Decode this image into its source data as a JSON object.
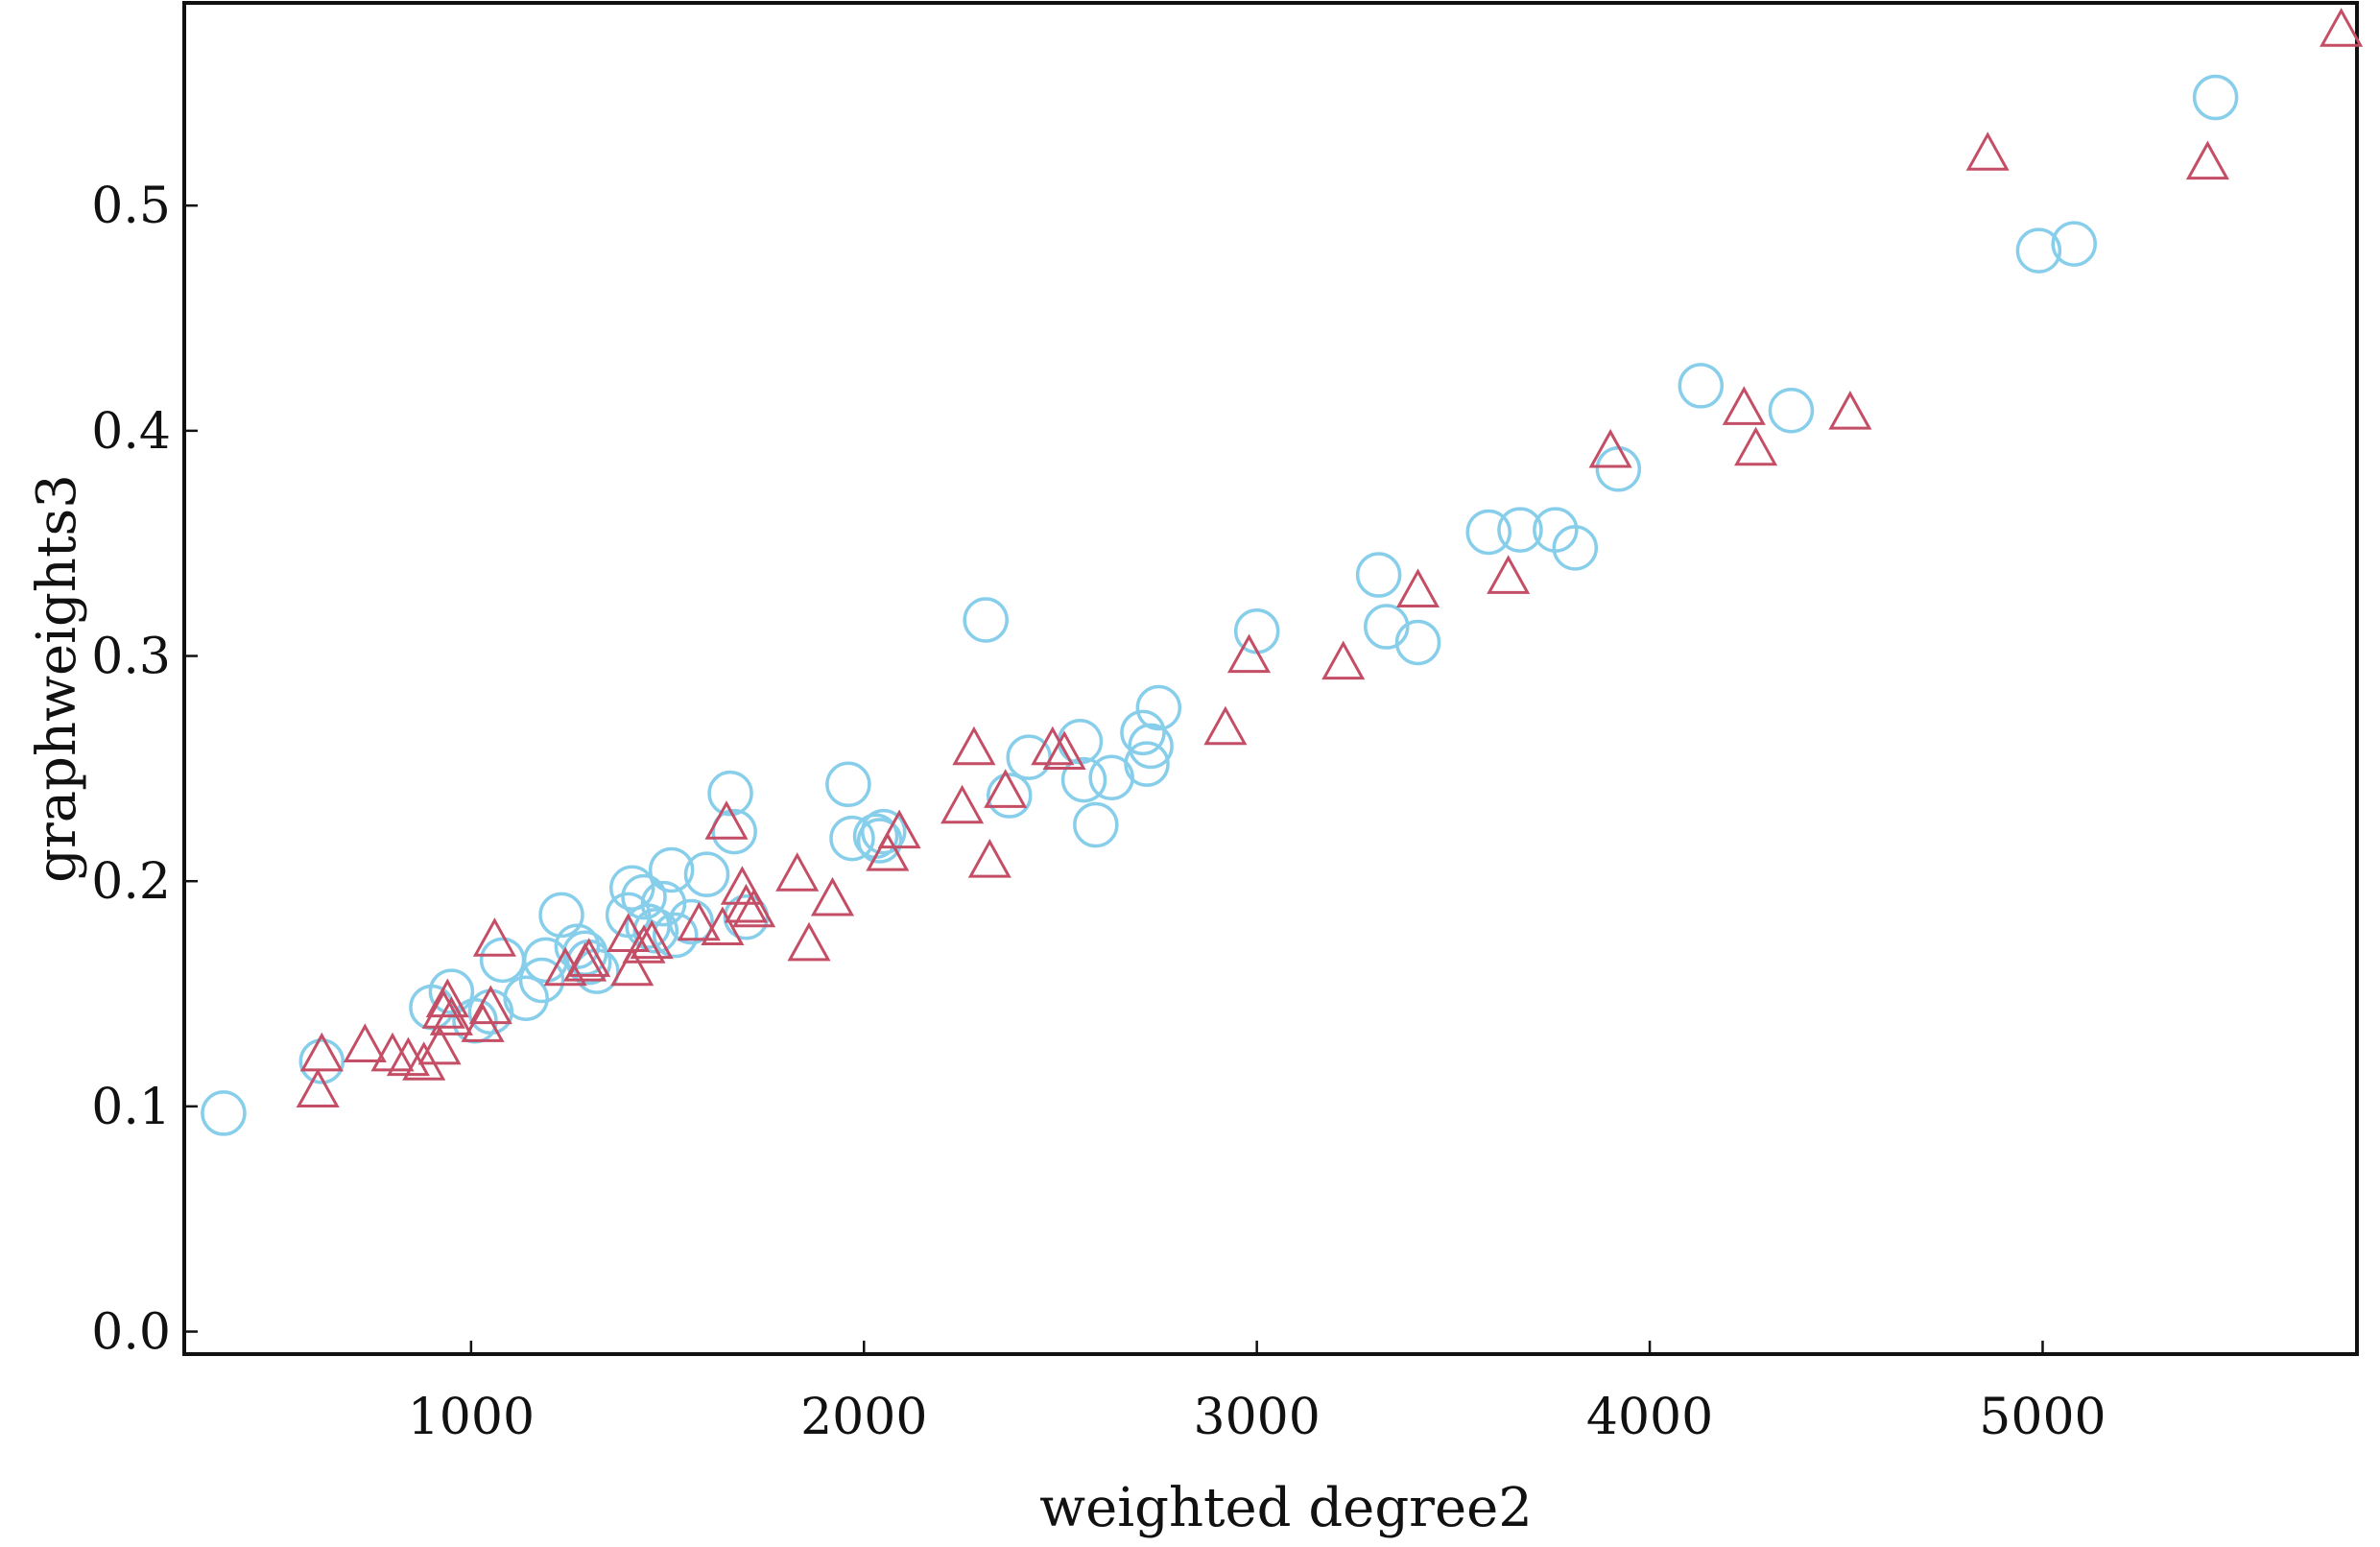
{
  "chart_data": {
    "type": "scatter",
    "title": "",
    "xlabel": "weighted degree2",
    "ylabel": "graphweights3",
    "xlim": [
      270,
      5800
    ],
    "ylim": [
      -0.01,
      0.59
    ],
    "x_ticks": [
      1000,
      2000,
      3000,
      4000,
      5000
    ],
    "x_tick_labels": [
      "1000",
      "2000",
      "3000",
      "4000",
      "5000"
    ],
    "y_ticks": [
      0.0,
      0.1,
      0.2,
      0.3,
      0.4,
      0.5
    ],
    "y_tick_labels": [
      "0.0",
      "0.1",
      "0.2",
      "0.3",
      "0.4",
      "0.5"
    ],
    "grid": false,
    "legend": "none",
    "series": [
      {
        "marker": "circle",
        "color": "#87CEEB",
        "points": [
          [
            370,
            0.097
          ],
          [
            620,
            0.12
          ],
          [
            900,
            0.144
          ],
          [
            950,
            0.151
          ],
          [
            1010,
            0.138
          ],
          [
            1050,
            0.142
          ],
          [
            1080,
            0.165
          ],
          [
            1140,
            0.148
          ],
          [
            1180,
            0.156
          ],
          [
            1190,
            0.165
          ],
          [
            1230,
            0.185
          ],
          [
            1270,
            0.171
          ],
          [
            1290,
            0.168
          ],
          [
            1300,
            0.164
          ],
          [
            1320,
            0.16
          ],
          [
            1400,
            0.185
          ],
          [
            1410,
            0.197
          ],
          [
            1440,
            0.193
          ],
          [
            1450,
            0.18
          ],
          [
            1470,
            0.178
          ],
          [
            1490,
            0.19
          ],
          [
            1510,
            0.205
          ],
          [
            1520,
            0.176
          ],
          [
            1560,
            0.182
          ],
          [
            1600,
            0.203
          ],
          [
            1660,
            0.239
          ],
          [
            1670,
            0.222
          ],
          [
            1700,
            0.184
          ],
          [
            1960,
            0.243
          ],
          [
            1970,
            0.219
          ],
          [
            2030,
            0.22
          ],
          [
            2040,
            0.218
          ],
          [
            2050,
            0.222
          ],
          [
            2310,
            0.316
          ],
          [
            2370,
            0.238
          ],
          [
            2420,
            0.255
          ],
          [
            2550,
            0.262
          ],
          [
            2560,
            0.245
          ],
          [
            2590,
            0.225
          ],
          [
            2630,
            0.246
          ],
          [
            2710,
            0.266
          ],
          [
            2720,
            0.252
          ],
          [
            2730,
            0.26
          ],
          [
            2750,
            0.277
          ],
          [
            3000,
            0.311
          ],
          [
            3310,
            0.336
          ],
          [
            3330,
            0.313
          ],
          [
            3410,
            0.306
          ],
          [
            3590,
            0.355
          ],
          [
            3670,
            0.356
          ],
          [
            3760,
            0.356
          ],
          [
            3810,
            0.348
          ],
          [
            3920,
            0.383
          ],
          [
            4130,
            0.42
          ],
          [
            4360,
            0.409
          ],
          [
            4990,
            0.48
          ],
          [
            5080,
            0.483
          ],
          [
            5440,
            0.548
          ]
        ]
      },
      {
        "marker": "triangle",
        "color": "#C44E65",
        "points": [
          [
            610,
            0.106
          ],
          [
            620,
            0.122
          ],
          [
            730,
            0.126
          ],
          [
            800,
            0.122
          ],
          [
            840,
            0.12
          ],
          [
            880,
            0.118
          ],
          [
            920,
            0.125
          ],
          [
            930,
            0.141
          ],
          [
            940,
            0.146
          ],
          [
            950,
            0.138
          ],
          [
            1030,
            0.135
          ],
          [
            1050,
            0.143
          ],
          [
            1060,
            0.173
          ],
          [
            1240,
            0.16
          ],
          [
            1290,
            0.162
          ],
          [
            1300,
            0.164
          ],
          [
            1400,
            0.175
          ],
          [
            1410,
            0.16
          ],
          [
            1440,
            0.17
          ],
          [
            1460,
            0.172
          ],
          [
            1580,
            0.18
          ],
          [
            1640,
            0.178
          ],
          [
            1650,
            0.225
          ],
          [
            1690,
            0.196
          ],
          [
            1700,
            0.188
          ],
          [
            1720,
            0.186
          ],
          [
            1830,
            0.202
          ],
          [
            1860,
            0.171
          ],
          [
            1920,
            0.191
          ],
          [
            2060,
            0.211
          ],
          [
            2090,
            0.221
          ],
          [
            2250,
            0.232
          ],
          [
            2280,
            0.258
          ],
          [
            2320,
            0.208
          ],
          [
            2360,
            0.239
          ],
          [
            2480,
            0.258
          ],
          [
            2510,
            0.256
          ],
          [
            2920,
            0.267
          ],
          [
            2980,
            0.299
          ],
          [
            3220,
            0.296
          ],
          [
            3410,
            0.328
          ],
          [
            3640,
            0.334
          ],
          [
            3900,
            0.39
          ],
          [
            4240,
            0.409
          ],
          [
            4270,
            0.391
          ],
          [
            4510,
            0.407
          ],
          [
            4860,
            0.522
          ],
          [
            5420,
            0.518
          ],
          [
            5760,
            0.577
          ]
        ]
      }
    ]
  }
}
